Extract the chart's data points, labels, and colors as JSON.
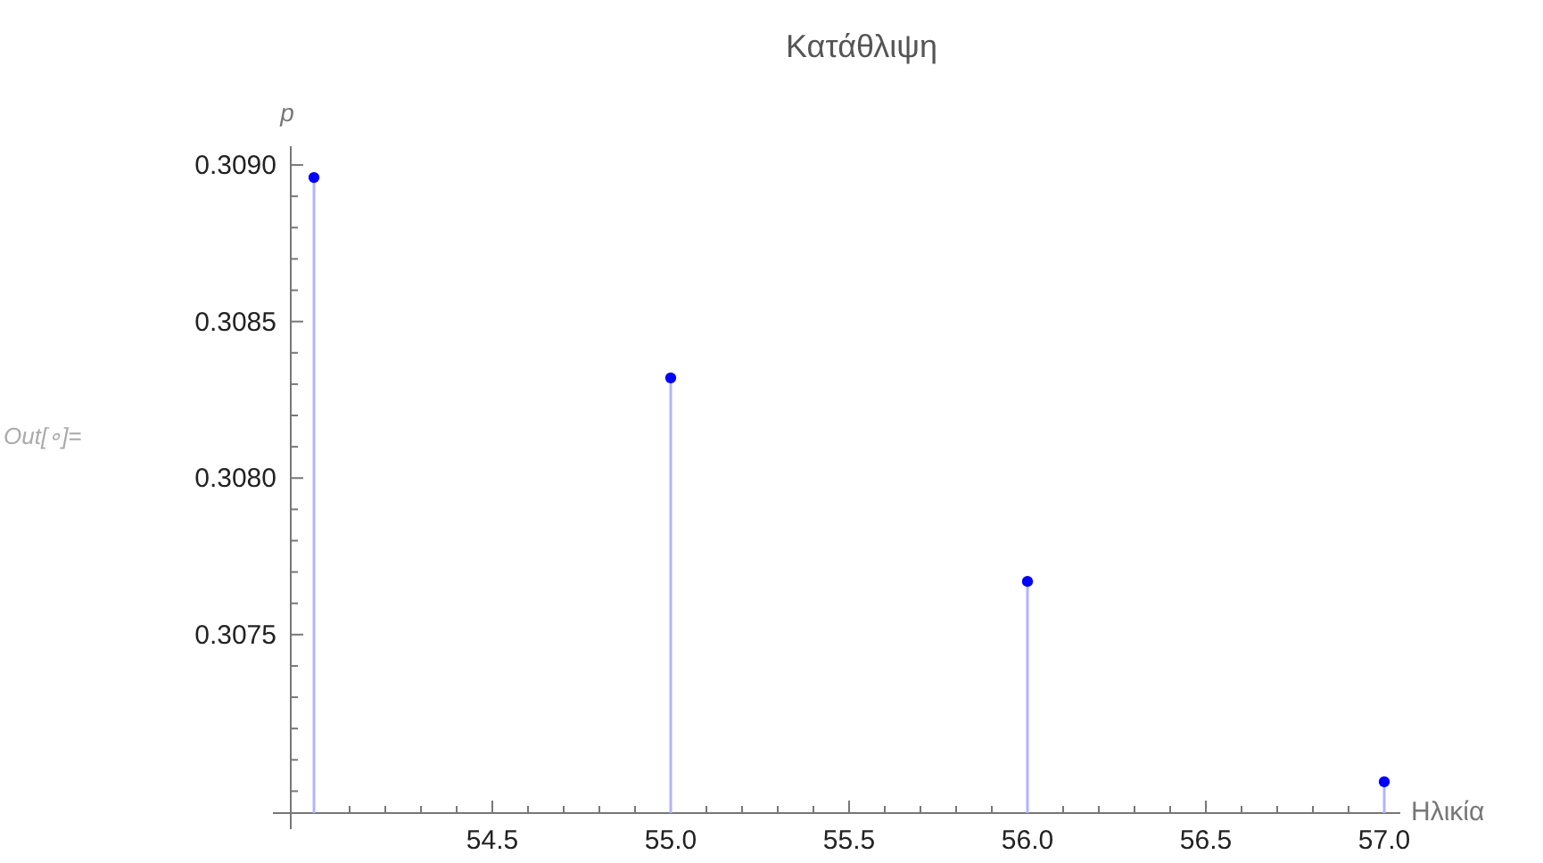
{
  "chart_data": {
    "type": "lollipop",
    "title": "Κατάθλιψη",
    "xlabel": "Ηλικία",
    "ylabel": "p",
    "annotations": [
      "Out[∘]="
    ],
    "x": [
      54,
      55,
      56,
      57
    ],
    "series": [
      {
        "color": "#0000ff",
        "values": [
          0.30896,
          0.30832,
          0.30767,
          0.30703
        ]
      }
    ],
    "marker": "circle",
    "xlim": [
      53.935,
      57.045
    ],
    "ylim": [
      0.30693,
      0.30906
    ],
    "xticks": [
      {
        "value": 54.0,
        "label": null
      },
      {
        "value": 54.1,
        "label": null
      },
      {
        "value": 54.2,
        "label": null
      },
      {
        "value": 54.3,
        "label": null
      },
      {
        "value": 54.4,
        "label": null
      },
      {
        "value": 54.5,
        "label": "54.5"
      },
      {
        "value": 54.6,
        "label": null
      },
      {
        "value": 54.7,
        "label": null
      },
      {
        "value": 54.8,
        "label": null
      },
      {
        "value": 54.9,
        "label": null
      },
      {
        "value": 55,
        "label": "55.0"
      },
      {
        "value": 55.1,
        "label": null
      },
      {
        "value": 55.2,
        "label": null
      },
      {
        "value": 55.3,
        "label": null
      },
      {
        "value": 55.4,
        "label": null
      },
      {
        "value": 55.5,
        "label": "55.5"
      },
      {
        "value": 55.6,
        "label": null
      },
      {
        "value": 55.7,
        "label": null
      },
      {
        "value": 55.8,
        "label": null
      },
      {
        "value": 55.9,
        "label": null
      },
      {
        "value": 56,
        "label": "56.0"
      },
      {
        "value": 56.1,
        "label": null
      },
      {
        "value": 56.2,
        "label": null
      },
      {
        "value": 56.3,
        "label": null
      },
      {
        "value": 56.4,
        "label": null
      },
      {
        "value": 56.5,
        "label": "56.5"
      },
      {
        "value": 56.6,
        "label": null
      },
      {
        "value": 56.7,
        "label": null
      },
      {
        "value": 56.8,
        "label": null
      },
      {
        "value": 56.9,
        "label": null
      },
      {
        "value": 57,
        "label": "57.0"
      }
    ],
    "yticks": [
      {
        "value": 0.307,
        "label": null
      },
      {
        "value": 0.3071,
        "label": null
      },
      {
        "value": 0.3072,
        "label": null
      },
      {
        "value": 0.3073,
        "label": null
      },
      {
        "value": 0.3074,
        "label": null
      },
      {
        "value": 0.3075,
        "label": "0.3075"
      },
      {
        "value": 0.3076,
        "label": null
      },
      {
        "value": 0.3077,
        "label": null
      },
      {
        "value": 0.3078,
        "label": null
      },
      {
        "value": 0.3079,
        "label": null
      },
      {
        "value": 0.308,
        "label": "0.3080"
      },
      {
        "value": 0.3081,
        "label": null
      },
      {
        "value": 0.3082,
        "label": null
      },
      {
        "value": 0.3083,
        "label": null
      },
      {
        "value": 0.3084,
        "label": null
      },
      {
        "value": 0.3085,
        "label": "0.3085"
      },
      {
        "value": 0.3086,
        "label": null
      },
      {
        "value": 0.3087,
        "label": null
      },
      {
        "value": 0.3088,
        "label": null
      },
      {
        "value": 0.3089,
        "label": null
      },
      {
        "value": 0.309,
        "label": "0.3090"
      }
    ]
  }
}
